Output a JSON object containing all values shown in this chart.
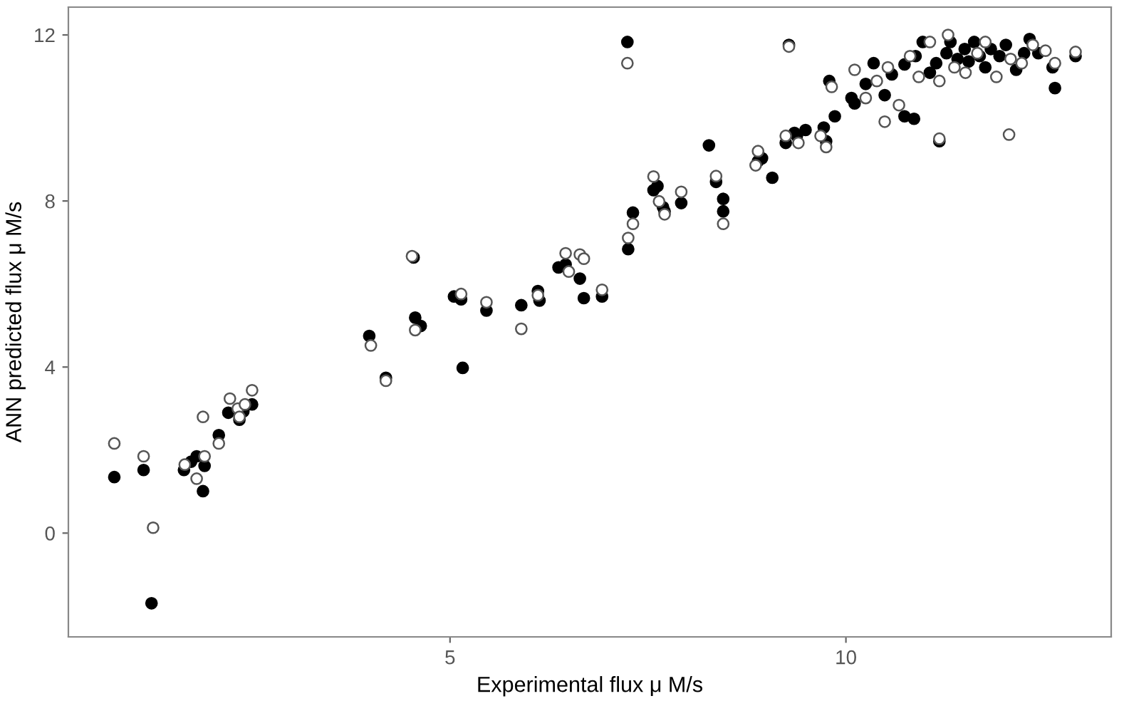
{
  "chart_data": {
    "type": "scatter",
    "xlabel": "Experimental flux μ M/s",
    "ylabel": "ANN predicted flux μ M/s",
    "xlim": [
      0.18,
      13.35
    ],
    "ylim": [
      -2.5,
      12.67
    ],
    "xticks": [
      5,
      10
    ],
    "yticks": [
      0,
      4,
      8,
      12
    ],
    "grid": false,
    "marker": "circle",
    "series": [
      {
        "color": "#000000",
        "x": [
          0.76,
          1.13,
          1.23,
          1.64,
          1.73,
          1.8,
          1.9,
          1.88,
          2.08,
          2.2,
          2.34,
          2.39,
          2.5,
          3.98,
          4.19,
          4.54,
          4.56,
          4.63,
          5.05,
          5.14,
          5.16,
          5.46,
          5.9,
          6.11,
          6.13,
          6.37,
          6.46,
          6.64,
          6.69,
          6.92,
          7.25,
          7.31,
          7.24,
          7.57,
          7.62,
          7.69,
          7.71,
          7.92,
          8.27,
          8.36,
          8.45,
          8.45,
          8.89,
          8.94,
          9.07,
          9.24,
          9.35,
          9.38,
          9.49,
          9.75,
          9.72,
          9.86,
          10.74,
          10.86,
          11.18,
          9.28,
          9.79,
          10.07,
          10.11,
          10.25,
          10.35,
          10.49,
          10.58,
          10.74,
          10.88,
          10.97,
          11.06,
          11.14,
          11.27,
          11.32,
          11.41,
          11.5,
          11.55,
          11.62,
          11.69,
          11.76,
          11.83,
          11.94,
          12.02,
          12.15,
          12.25,
          12.32,
          12.43,
          12.61,
          12.64,
          12.9
        ],
        "values": [
          1.35,
          1.52,
          -1.69,
          1.52,
          1.72,
          1.85,
          1.62,
          1.01,
          2.36,
          2.9,
          2.73,
          2.93,
          3.1,
          4.75,
          3.74,
          6.64,
          5.19,
          4.99,
          5.7,
          5.63,
          3.98,
          5.36,
          5.49,
          5.83,
          5.6,
          6.4,
          6.47,
          6.13,
          5.66,
          5.7,
          6.84,
          7.72,
          11.83,
          8.26,
          8.36,
          7.85,
          7.75,
          7.95,
          9.34,
          8.46,
          8.05,
          7.75,
          8.96,
          9.03,
          8.56,
          9.4,
          9.64,
          9.57,
          9.71,
          9.44,
          9.77,
          10.04,
          10.04,
          9.98,
          9.44,
          11.76,
          10.89,
          10.48,
          10.35,
          10.82,
          11.32,
          10.55,
          11.05,
          11.29,
          11.49,
          11.83,
          11.09,
          11.32,
          11.56,
          11.83,
          11.42,
          11.66,
          11.36,
          11.83,
          11.49,
          11.22,
          11.66,
          11.49,
          11.76,
          11.16,
          11.56,
          11.9,
          11.56,
          11.22,
          10.72,
          11.49
        ]
      },
      {
        "color": "#ffffff",
        "x": [
          0.76,
          1.13,
          1.25,
          1.65,
          1.8,
          1.88,
          1.9,
          2.08,
          2.22,
          2.32,
          2.34,
          2.41,
          2.5,
          4.0,
          4.19,
          4.52,
          4.56,
          5.14,
          5.46,
          5.9,
          6.11,
          6.46,
          6.5,
          6.64,
          6.69,
          6.92,
          7.25,
          7.31,
          7.24,
          7.57,
          7.64,
          7.71,
          7.92,
          8.36,
          8.45,
          8.89,
          8.86,
          9.24,
          9.4,
          9.68,
          9.75,
          10.49,
          11.18,
          12.06,
          9.28,
          9.82,
          10.11,
          10.25,
          10.39,
          10.53,
          10.67,
          10.81,
          10.92,
          11.06,
          11.18,
          11.29,
          11.37,
          11.51,
          11.66,
          11.76,
          11.9,
          12.08,
          12.22,
          12.36,
          12.52,
          12.64,
          12.9
        ],
        "values": [
          2.16,
          1.85,
          0.13,
          1.65,
          1.31,
          2.8,
          1.85,
          2.16,
          3.24,
          3.0,
          2.8,
          3.1,
          3.44,
          4.52,
          3.67,
          6.67,
          4.89,
          5.76,
          5.56,
          4.92,
          5.73,
          6.74,
          6.3,
          6.71,
          6.61,
          5.86,
          7.11,
          7.45,
          11.32,
          8.59,
          7.99,
          7.68,
          8.22,
          8.6,
          7.45,
          9.2,
          8.86,
          9.57,
          9.4,
          9.57,
          9.3,
          9.91,
          9.5,
          9.6,
          11.72,
          10.75,
          11.16,
          10.48,
          10.89,
          11.22,
          10.31,
          11.49,
          10.99,
          11.83,
          10.89,
          12.0,
          11.22,
          11.09,
          11.56,
          11.83,
          10.99,
          11.42,
          11.32,
          11.76,
          11.62,
          11.32,
          11.59
        ]
      }
    ]
  }
}
